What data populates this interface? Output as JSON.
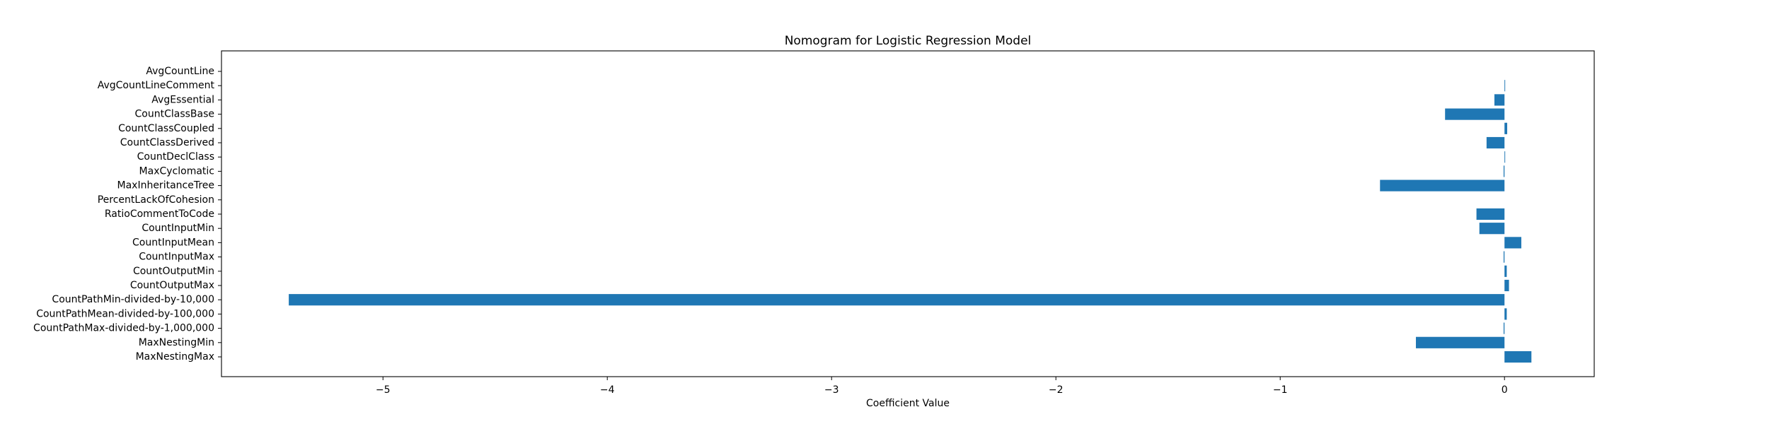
{
  "chart_data": {
    "type": "bar",
    "orientation": "horizontal",
    "title": "Nomogram for Logistic Regression Model",
    "xlabel": "Coefficient Value",
    "ylabel": "",
    "xlim": [
      -5.72,
      0.4
    ],
    "xticks": [
      -5,
      -4,
      -3,
      -2,
      -1,
      0
    ],
    "xtick_labels": [
      "−5",
      "−4",
      "−3",
      "−2",
      "−1",
      "0"
    ],
    "grid": false,
    "bar_color": "#1f77b4",
    "categories": [
      "AvgCountLine",
      "AvgCountLineComment",
      "AvgEssential",
      "CountClassBase",
      "CountClassCoupled",
      "CountClassDerived",
      "CountDeclClass",
      "MaxCyclomatic",
      "MaxInheritanceTree",
      "PercentLackOfCohesion",
      "RatioCommentToCode",
      "CountInputMin",
      "CountInputMean",
      "CountInputMax",
      "CountOutputMin",
      "CountOutputMax",
      "CountPathMin-divided-by-10,000",
      "CountPathMean-divided-by-100,000",
      "CountPathMax-divided-by-1,000,000",
      "MaxNestingMin",
      "MaxNestingMax"
    ],
    "values": [
      0.0,
      0.003,
      -0.045,
      -0.265,
      0.012,
      -0.08,
      0.003,
      -0.004,
      -0.555,
      0.0,
      -0.125,
      -0.112,
      0.075,
      -0.004,
      0.01,
      0.02,
      -5.42,
      0.01,
      -0.004,
      -0.395,
      0.12
    ]
  }
}
